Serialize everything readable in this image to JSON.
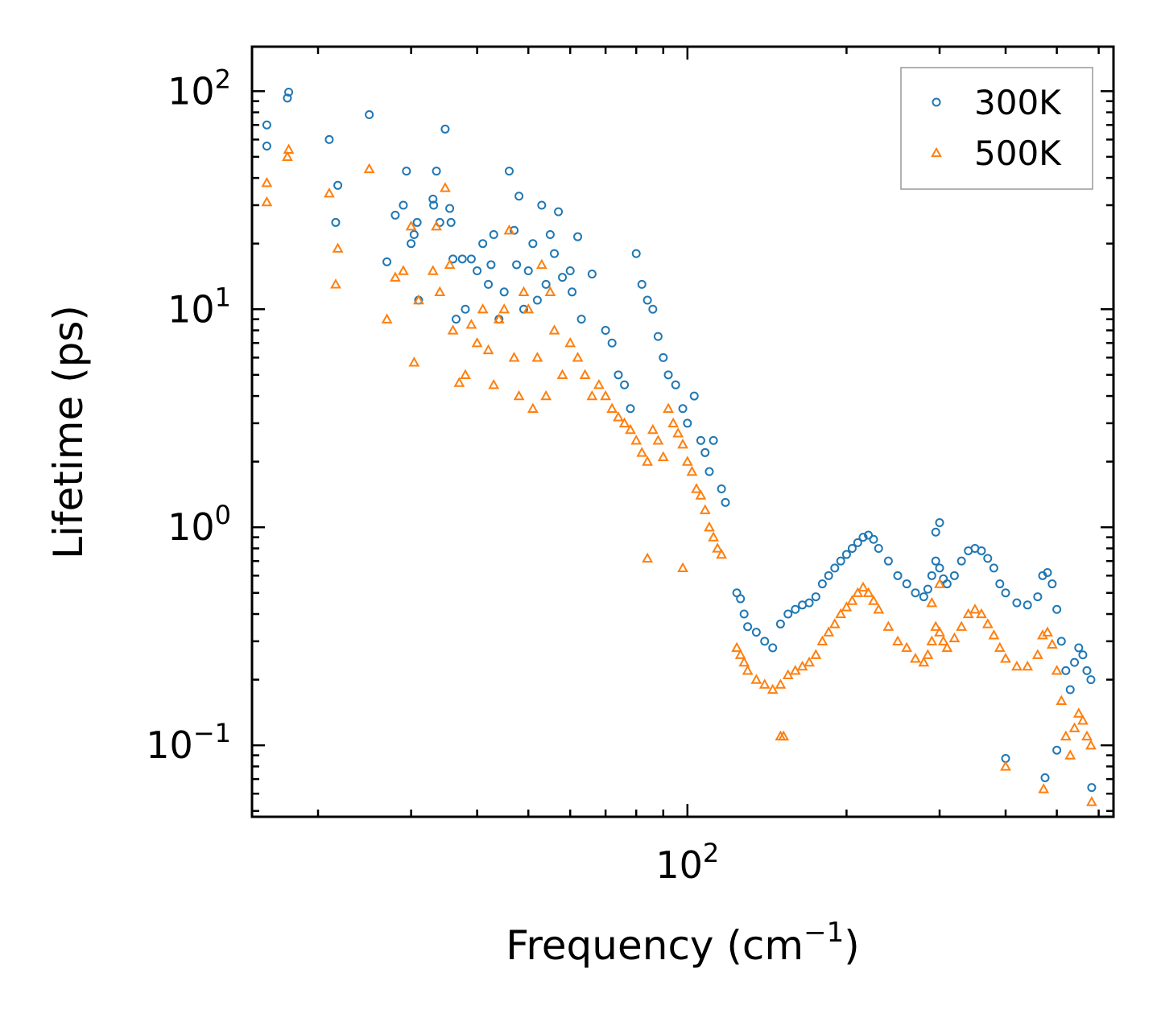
{
  "chart_data": {
    "type": "scatter",
    "xscale": "log",
    "yscale": "log",
    "xlim": [
      15,
      640
    ],
    "ylim": [
      0.047,
      160
    ],
    "xlabel": "Frequency (cm",
    "xlabel_sup": "−1",
    "xlabel_end": ")",
    "ylabel": "Lifetime (ps)",
    "x_ticks": [
      {
        "value": 100,
        "base": "10",
        "exp": "2"
      }
    ],
    "y_ticks": [
      {
        "value": 100,
        "base": "10",
        "exp": "2"
      },
      {
        "value": 10,
        "base": "10",
        "exp": "1"
      },
      {
        "value": 1,
        "base": "10",
        "exp": "0"
      },
      {
        "value": 0.1,
        "base": "10",
        "exp": "−1"
      }
    ],
    "legend_position": "top-right",
    "series": [
      {
        "name": "300K",
        "marker": "circle",
        "color": "#1f77b4",
        "points": [
          [
            16.0,
            70
          ],
          [
            16.0,
            56
          ],
          [
            17.5,
            93
          ],
          [
            17.6,
            99
          ],
          [
            21.0,
            60
          ],
          [
            21.8,
            37
          ],
          [
            21.6,
            25
          ],
          [
            25,
            78
          ],
          [
            27,
            16.5
          ],
          [
            28,
            27
          ],
          [
            29,
            30
          ],
          [
            29.4,
            43
          ],
          [
            30,
            20
          ],
          [
            30.4,
            22
          ],
          [
            30.8,
            25
          ],
          [
            31,
            11
          ],
          [
            33,
            32
          ],
          [
            33.1,
            30
          ],
          [
            33.5,
            43
          ],
          [
            34,
            25
          ],
          [
            34.8,
            67
          ],
          [
            35.5,
            29
          ],
          [
            35.7,
            25
          ],
          [
            36,
            17
          ],
          [
            36.5,
            9
          ],
          [
            37.5,
            17
          ],
          [
            38,
            10
          ],
          [
            39,
            17
          ],
          [
            40,
            15
          ],
          [
            41,
            20
          ],
          [
            42,
            13
          ],
          [
            42.5,
            16
          ],
          [
            43,
            22
          ],
          [
            44,
            9
          ],
          [
            45,
            12
          ],
          [
            46,
            43
          ],
          [
            47,
            23
          ],
          [
            47.5,
            16
          ],
          [
            48,
            33
          ],
          [
            49,
            10
          ],
          [
            50,
            15
          ],
          [
            51,
            20
          ],
          [
            52,
            11
          ],
          [
            53,
            30
          ],
          [
            54,
            13
          ],
          [
            55,
            22
          ],
          [
            56,
            18
          ],
          [
            57,
            28
          ],
          [
            58,
            14
          ],
          [
            60,
            15
          ],
          [
            60.5,
            12
          ],
          [
            62,
            21.5
          ],
          [
            63,
            9
          ],
          [
            66,
            14.5
          ],
          [
            70,
            8
          ],
          [
            72,
            7
          ],
          [
            74,
            5
          ],
          [
            76,
            4.5
          ],
          [
            78,
            3.5
          ],
          [
            80,
            18
          ],
          [
            82,
            13
          ],
          [
            84,
            11
          ],
          [
            86,
            10
          ],
          [
            88,
            7.5
          ],
          [
            90,
            6
          ],
          [
            92,
            5
          ],
          [
            95,
            4.5
          ],
          [
            98,
            3.5
          ],
          [
            100,
            3
          ],
          [
            103,
            4
          ],
          [
            106,
            2.5
          ],
          [
            108,
            2.2
          ],
          [
            110,
            1.8
          ],
          [
            112,
            2.5
          ],
          [
            116,
            1.5
          ],
          [
            118,
            1.3
          ],
          [
            124,
            0.5
          ],
          [
            126,
            0.47
          ],
          [
            128,
            0.4
          ],
          [
            130,
            0.35
          ],
          [
            135,
            0.33
          ],
          [
            140,
            0.3
          ],
          [
            145,
            0.28
          ],
          [
            150,
            0.36
          ],
          [
            155,
            0.4
          ],
          [
            160,
            0.42
          ],
          [
            165,
            0.44
          ],
          [
            170,
            0.45
          ],
          [
            175,
            0.48
          ],
          [
            180,
            0.55
          ],
          [
            185,
            0.6
          ],
          [
            190,
            0.65
          ],
          [
            195,
            0.7
          ],
          [
            200,
            0.75
          ],
          [
            205,
            0.8
          ],
          [
            210,
            0.85
          ],
          [
            215,
            0.9
          ],
          [
            220,
            0.92
          ],
          [
            225,
            0.88
          ],
          [
            230,
            0.8
          ],
          [
            240,
            0.7
          ],
          [
            250,
            0.6
          ],
          [
            260,
            0.55
          ],
          [
            270,
            0.5
          ],
          [
            280,
            0.48
          ],
          [
            285,
            0.52
          ],
          [
            290,
            0.6
          ],
          [
            295,
            0.7
          ],
          [
            300,
            0.65
          ],
          [
            305,
            0.58
          ],
          [
            310,
            0.55
          ],
          [
            320,
            0.6
          ],
          [
            330,
            0.7
          ],
          [
            340,
            0.78
          ],
          [
            350,
            0.8
          ],
          [
            360,
            0.78
          ],
          [
            370,
            0.72
          ],
          [
            380,
            0.65
          ],
          [
            390,
            0.55
          ],
          [
            400,
            0.5
          ],
          [
            420,
            0.45
          ],
          [
            440,
            0.44
          ],
          [
            460,
            0.48
          ],
          [
            470,
            0.6
          ],
          [
            480,
            0.62
          ],
          [
            490,
            0.55
          ],
          [
            500,
            0.42
          ],
          [
            510,
            0.3
          ],
          [
            520,
            0.22
          ],
          [
            530,
            0.18
          ],
          [
            540,
            0.24
          ],
          [
            550,
            0.28
          ],
          [
            560,
            0.26
          ],
          [
            570,
            0.22
          ],
          [
            580,
            0.2
          ],
          [
            400,
            0.087
          ],
          [
            475,
            0.071
          ],
          [
            500,
            0.095
          ],
          [
            582,
            0.064
          ],
          [
            300,
            1.05
          ],
          [
            295,
            0.95
          ]
        ]
      },
      {
        "name": "500K",
        "marker": "triangle",
        "color": "#ff7f0e",
        "points": [
          [
            16.0,
            38
          ],
          [
            16.0,
            31
          ],
          [
            17.5,
            50
          ],
          [
            17.6,
            54
          ],
          [
            21.0,
            34
          ],
          [
            21.8,
            19
          ],
          [
            21.6,
            13
          ],
          [
            25,
            44
          ],
          [
            27,
            9
          ],
          [
            28,
            14
          ],
          [
            29,
            15
          ],
          [
            30,
            24
          ],
          [
            30.4,
            5.7
          ],
          [
            31,
            11
          ],
          [
            33,
            15
          ],
          [
            33.5,
            24
          ],
          [
            34,
            12
          ],
          [
            34.8,
            36
          ],
          [
            35.5,
            16
          ],
          [
            36,
            8
          ],
          [
            37,
            4.6
          ],
          [
            38,
            5
          ],
          [
            39,
            8.5
          ],
          [
            40,
            7
          ],
          [
            41,
            10
          ],
          [
            42,
            6.5
          ],
          [
            43,
            4.5
          ],
          [
            44,
            9
          ],
          [
            45,
            10
          ],
          [
            46,
            23
          ],
          [
            47,
            6
          ],
          [
            48,
            4
          ],
          [
            49,
            12
          ],
          [
            50,
            10
          ],
          [
            51,
            3.5
          ],
          [
            52,
            6
          ],
          [
            53,
            16
          ],
          [
            54,
            4
          ],
          [
            55,
            12
          ],
          [
            56,
            8
          ],
          [
            58,
            5
          ],
          [
            60,
            7
          ],
          [
            62,
            6
          ],
          [
            64,
            5
          ],
          [
            66,
            4
          ],
          [
            68,
            4.5
          ],
          [
            70,
            4
          ],
          [
            72,
            3.5
          ],
          [
            74,
            3.2
          ],
          [
            76,
            3
          ],
          [
            78,
            2.8
          ],
          [
            80,
            2.5
          ],
          [
            82,
            2.2
          ],
          [
            84,
            2
          ],
          [
            86,
            2.8
          ],
          [
            88,
            2.5
          ],
          [
            90,
            2.1
          ],
          [
            92,
            3.5
          ],
          [
            94,
            3
          ],
          [
            96,
            2.7
          ],
          [
            98,
            2.4
          ],
          [
            100,
            2
          ],
          [
            102,
            1.8
          ],
          [
            104,
            1.5
          ],
          [
            106,
            1.4
          ],
          [
            108,
            1.2
          ],
          [
            110,
            1.0
          ],
          [
            112,
            0.9
          ],
          [
            114,
            0.8
          ],
          [
            116,
            0.75
          ],
          [
            84,
            0.72
          ],
          [
            98,
            0.65
          ],
          [
            124,
            0.28
          ],
          [
            126,
            0.26
          ],
          [
            128,
            0.24
          ],
          [
            130,
            0.22
          ],
          [
            135,
            0.2
          ],
          [
            140,
            0.19
          ],
          [
            145,
            0.18
          ],
          [
            150,
            0.19
          ],
          [
            155,
            0.21
          ],
          [
            160,
            0.22
          ],
          [
            165,
            0.23
          ],
          [
            170,
            0.24
          ],
          [
            175,
            0.26
          ],
          [
            180,
            0.3
          ],
          [
            185,
            0.33
          ],
          [
            190,
            0.36
          ],
          [
            195,
            0.4
          ],
          [
            200,
            0.43
          ],
          [
            205,
            0.46
          ],
          [
            210,
            0.5
          ],
          [
            215,
            0.53
          ],
          [
            220,
            0.5
          ],
          [
            225,
            0.46
          ],
          [
            230,
            0.42
          ],
          [
            240,
            0.35
          ],
          [
            250,
            0.3
          ],
          [
            260,
            0.28
          ],
          [
            270,
            0.25
          ],
          [
            280,
            0.24
          ],
          [
            285,
            0.26
          ],
          [
            290,
            0.3
          ],
          [
            295,
            0.35
          ],
          [
            300,
            0.33
          ],
          [
            305,
            0.3
          ],
          [
            310,
            0.28
          ],
          [
            320,
            0.31
          ],
          [
            330,
            0.35
          ],
          [
            340,
            0.4
          ],
          [
            350,
            0.42
          ],
          [
            360,
            0.4
          ],
          [
            370,
            0.36
          ],
          [
            380,
            0.32
          ],
          [
            390,
            0.28
          ],
          [
            400,
            0.25
          ],
          [
            420,
            0.23
          ],
          [
            440,
            0.23
          ],
          [
            460,
            0.26
          ],
          [
            470,
            0.32
          ],
          [
            480,
            0.33
          ],
          [
            490,
            0.29
          ],
          [
            500,
            0.22
          ],
          [
            510,
            0.16
          ],
          [
            520,
            0.11
          ],
          [
            530,
            0.09
          ],
          [
            540,
            0.12
          ],
          [
            550,
            0.14
          ],
          [
            560,
            0.13
          ],
          [
            570,
            0.11
          ],
          [
            580,
            0.1
          ],
          [
            150,
            0.11
          ],
          [
            152,
            0.11
          ],
          [
            400,
            0.08
          ],
          [
            472,
            0.063
          ],
          [
            582,
            0.055
          ],
          [
            290,
            0.45
          ],
          [
            300,
            0.55
          ]
        ]
      }
    ]
  }
}
